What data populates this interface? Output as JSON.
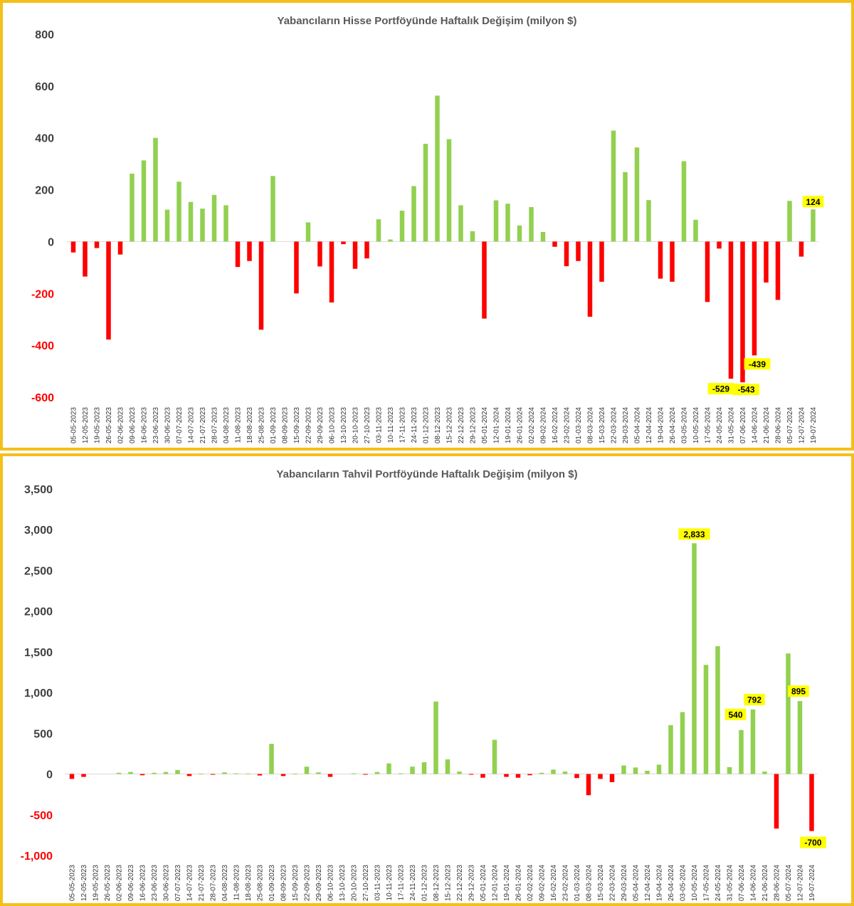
{
  "colors": {
    "positive": "#92d050",
    "negative": "#ff0000",
    "highlight": "#ffff00",
    "border": "#f5bf1a",
    "zero_line": "#d9d9d9"
  },
  "chart_data": [
    {
      "type": "bar",
      "title": "Yabancıların Hisse Portföyünde Haftalık Değişim (milyon $)",
      "xlabel": "",
      "ylabel": "",
      "ylim": [
        -600,
        800
      ],
      "yticks": [
        800,
        600,
        400,
        200,
        0,
        -200,
        -400,
        -600
      ],
      "ytick_labels": [
        "800",
        "600",
        "400",
        "200",
        "0",
        "-200",
        "-400",
        "-600"
      ],
      "grid": false,
      "categories": [
        "05-05-2023",
        "12-05-2023",
        "19-05-2023",
        "26-05-2023",
        "02-06-2023",
        "09-06-2023",
        "16-06-2023",
        "23-06-2023",
        "30-06-2023",
        "07-07-2023",
        "14-07-2023",
        "21-07-2023",
        "28-07-2023",
        "04-08-2023",
        "11-08-2023",
        "18-08-2023",
        "25-08-2023",
        "01-09-2023",
        "08-09-2023",
        "15-09-2023",
        "22-09-2023",
        "29-09-2023",
        "06-10-2023",
        "13-10-2023",
        "20-10-2023",
        "27-10-2023",
        "03-11-2023",
        "10-11-2023",
        "17-11-2023",
        "24-11-2023",
        "01-12-2023",
        "08-12-2023",
        "15-12-2023",
        "22-12-2023",
        "29-12-2023",
        "05-01-2024",
        "12-01-2024",
        "19-01-2024",
        "26-01-2024",
        "02-02-2024",
        "09-02-2024",
        "16-02-2024",
        "23-02-2024",
        "01-03-2024",
        "08-03-2024",
        "15-03-2024",
        "22-03-2024",
        "29-03-2024",
        "05-04-2024",
        "12-04-2024",
        "19-04-2024",
        "26-04-2024",
        "03-05-2024",
        "10-05-2024",
        "17-05-2024",
        "24-05-2024",
        "31-05-2024",
        "07-06-2024",
        "14-06-2024",
        "21-06-2024",
        "28-06-2024",
        "05-07-2024",
        "12-07-2024",
        "19-07-2024"
      ],
      "values": [
        -42,
        -135,
        -25,
        -378,
        -50,
        262,
        313,
        400,
        123,
        231,
        153,
        127,
        180,
        140,
        -98,
        -75,
        -340,
        253,
        0,
        -200,
        74,
        -96,
        -235,
        -10,
        -105,
        -65,
        86,
        8,
        119,
        214,
        377,
        563,
        395,
        140,
        40,
        -297,
        159,
        146,
        62,
        133,
        37,
        -20,
        -95,
        -75,
        -290,
        -155,
        428,
        268,
        363,
        160,
        -143,
        -155,
        310,
        84,
        -233,
        -27,
        -529,
        -543,
        -439,
        -158,
        -225,
        157,
        -58,
        124
      ],
      "data_labels": [
        {
          "index": 56,
          "text": "-529"
        },
        {
          "index": 57,
          "text": "-543"
        },
        {
          "index": 58,
          "text": "-439"
        },
        {
          "index": 63,
          "text": "124"
        }
      ]
    },
    {
      "type": "bar",
      "title": "Yabancıların Tahvil Portföyünde Haftalık Değişim (milyon $)",
      "xlabel": "",
      "ylabel": "",
      "ylim": [
        -1000,
        3500
      ],
      "yticks": [
        3500,
        3000,
        2500,
        2000,
        1500,
        1000,
        500,
        0,
        -500,
        -1000
      ],
      "ytick_labels": [
        "3,500",
        "3,000",
        "2,500",
        "2,000",
        "1,500",
        "1,000",
        "500",
        "0",
        "-500",
        "-1,000"
      ],
      "grid": false,
      "categories": [
        "05-05-2023",
        "12-05-2023",
        "19-05-2023",
        "26-05-2023",
        "02-06-2023",
        "09-06-2023",
        "16-06-2023",
        "23-06-2023",
        "30-06-2023",
        "07-07-2023",
        "14-07-2023",
        "21-07-2023",
        "28-07-2023",
        "04-08-2023",
        "11-08-2023",
        "18-08-2023",
        "25-08-2023",
        "01-09-2023",
        "08-09-2023",
        "15-09-2023",
        "22-09-2023",
        "29-09-2023",
        "06-10-2023",
        "13-10-2023",
        "20-10-2023",
        "27-10-2023",
        "03-11-2023",
        "10-11-2023",
        "17-11-2023",
        "24-11-2023",
        "01-12-2023",
        "08-12-2023",
        "15-12-2023",
        "22-12-2023",
        "29-12-2023",
        "05-01-2024",
        "12-01-2024",
        "19-01-2024",
        "26-01-2024",
        "02-02-2024",
        "09-02-2024",
        "16-02-2024",
        "23-02-2024",
        "01-03-2024",
        "08-03-2024",
        "15-03-2024",
        "22-03-2024",
        "29-03-2024",
        "05-04-2024",
        "12-04-2024",
        "19-04-2024",
        "26-04-2024",
        "03-05-2024",
        "10-05-2024",
        "17-05-2024",
        "24-05-2024",
        "31-05-2024",
        "07-06-2024",
        "14-06-2024",
        "21-06-2024",
        "28-06-2024",
        "05-07-2024",
        "12-07-2024",
        "19-07-2024"
      ],
      "values": [
        -60,
        -35,
        0,
        0,
        15,
        25,
        -15,
        15,
        25,
        50,
        -25,
        5,
        -8,
        20,
        8,
        5,
        -18,
        370,
        -25,
        5,
        90,
        20,
        -35,
        0,
        8,
        -8,
        25,
        130,
        8,
        90,
        145,
        890,
        180,
        30,
        -5,
        -45,
        420,
        -35,
        -45,
        -15,
        15,
        55,
        30,
        -50,
        -260,
        -60,
        -100,
        105,
        80,
        40,
        115,
        600,
        760,
        2833,
        1340,
        1570,
        85,
        540,
        792,
        30,
        -670,
        1480,
        895,
        -700
      ],
      "data_labels": [
        {
          "index": 53,
          "text": "2,833"
        },
        {
          "index": 57,
          "text": "540"
        },
        {
          "index": 58,
          "text": "792"
        },
        {
          "index": 62,
          "text": "895"
        },
        {
          "index": 63,
          "text": "-700"
        }
      ]
    }
  ]
}
